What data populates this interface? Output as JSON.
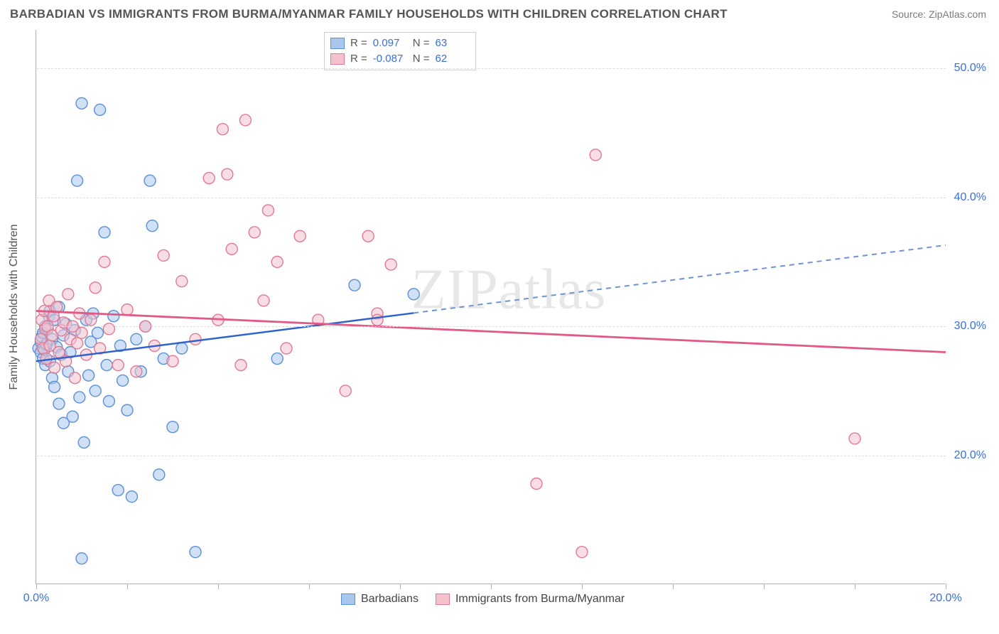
{
  "header": {
    "title": "BARBADIAN VS IMMIGRANTS FROM BURMA/MYANMAR FAMILY HOUSEHOLDS WITH CHILDREN CORRELATION CHART",
    "source": "Source: ZipAtlas.com"
  },
  "watermark": "ZIPatlas",
  "chart": {
    "type": "scatter",
    "y_axis_title": "Family Households with Children",
    "background_color": "#ffffff",
    "grid_color": "#dcdcdc",
    "axis_color": "#b0b0b0",
    "xlim": [
      0,
      20
    ],
    "ylim": [
      10,
      53
    ],
    "x_ticks": [
      0,
      2,
      4,
      6,
      8,
      10,
      12,
      14,
      16,
      18,
      20
    ],
    "x_tick_labels": {
      "0": "0.0%",
      "20": "20.0%"
    },
    "y_ticks": [
      20,
      30,
      40,
      50
    ],
    "y_tick_labels": {
      "20": "20.0%",
      "30": "30.0%",
      "40": "40.0%",
      "50": "50.0%"
    },
    "tick_label_color": "#3a6fd8",
    "tick_label_fontsize": 16,
    "marker_radius": 8,
    "marker_opacity": 0.55,
    "marker_stroke_width": 1.4,
    "series": [
      {
        "name": "Barbadians",
        "fill_color": "#a9c7ec",
        "stroke_color": "#5b8fd6",
        "R": "0.097",
        "N": "63",
        "trend": {
          "x1": 0,
          "y1": 27.3,
          "x2": 20,
          "y2": 36.3,
          "solid_until_x": 8.3,
          "color_solid": "#2f63c9",
          "color_dash": "#6e93d4",
          "width": 2.5
        },
        "points": [
          [
            0.05,
            28.3
          ],
          [
            0.1,
            28.0
          ],
          [
            0.1,
            28.8
          ],
          [
            0.12,
            29.2
          ],
          [
            0.15,
            27.5
          ],
          [
            0.15,
            29.5
          ],
          [
            0.18,
            28.2
          ],
          [
            0.2,
            30.0
          ],
          [
            0.2,
            27.0
          ],
          [
            0.22,
            28.6
          ],
          [
            0.25,
            29.8
          ],
          [
            0.28,
            30.8
          ],
          [
            0.3,
            27.3
          ],
          [
            0.3,
            31.2
          ],
          [
            0.35,
            26.0
          ],
          [
            0.35,
            29.0
          ],
          [
            0.4,
            30.5
          ],
          [
            0.4,
            25.3
          ],
          [
            0.45,
            28.4
          ],
          [
            0.5,
            31.5
          ],
          [
            0.5,
            24.0
          ],
          [
            0.55,
            27.8
          ],
          [
            0.6,
            29.3
          ],
          [
            0.6,
            22.5
          ],
          [
            0.65,
            30.2
          ],
          [
            0.7,
            26.5
          ],
          [
            0.75,
            28.0
          ],
          [
            0.8,
            23.0
          ],
          [
            0.85,
            29.7
          ],
          [
            0.9,
            41.3
          ],
          [
            0.95,
            24.5
          ],
          [
            1.0,
            47.3
          ],
          [
            1.05,
            21.0
          ],
          [
            1.1,
            30.5
          ],
          [
            1.15,
            26.2
          ],
          [
            1.2,
            28.8
          ],
          [
            1.25,
            31.0
          ],
          [
            1.3,
            25.0
          ],
          [
            1.35,
            29.5
          ],
          [
            1.4,
            46.8
          ],
          [
            1.5,
            37.3
          ],
          [
            1.55,
            27.0
          ],
          [
            1.6,
            24.2
          ],
          [
            1.7,
            30.8
          ],
          [
            1.8,
            17.3
          ],
          [
            1.85,
            28.5
          ],
          [
            1.9,
            25.8
          ],
          [
            2.0,
            23.5
          ],
          [
            2.1,
            16.8
          ],
          [
            2.2,
            29.0
          ],
          [
            2.3,
            26.5
          ],
          [
            2.4,
            30.0
          ],
          [
            2.5,
            41.3
          ],
          [
            2.55,
            37.8
          ],
          [
            2.7,
            18.5
          ],
          [
            2.8,
            27.5
          ],
          [
            3.0,
            22.2
          ],
          [
            3.2,
            28.3
          ],
          [
            3.5,
            12.5
          ],
          [
            1.0,
            12.0
          ],
          [
            5.3,
            27.5
          ],
          [
            7.0,
            33.2
          ],
          [
            8.3,
            32.5
          ]
        ]
      },
      {
        "name": "Immigrants from Burma/Myanmar",
        "fill_color": "#f4c1cd",
        "stroke_color": "#e07a94",
        "R": "-0.087",
        "N": "62",
        "trend": {
          "x1": 0,
          "y1": 31.2,
          "x2": 20,
          "y2": 28.0,
          "solid_until_x": 20,
          "color_solid": "#e05a85",
          "color_dash": "#e05a85",
          "width": 2.8
        },
        "points": [
          [
            0.1,
            29.0
          ],
          [
            0.12,
            30.5
          ],
          [
            0.15,
            28.3
          ],
          [
            0.18,
            31.2
          ],
          [
            0.2,
            29.8
          ],
          [
            0.22,
            27.5
          ],
          [
            0.25,
            30.0
          ],
          [
            0.28,
            32.0
          ],
          [
            0.3,
            28.5
          ],
          [
            0.35,
            29.3
          ],
          [
            0.38,
            30.8
          ],
          [
            0.4,
            26.8
          ],
          [
            0.45,
            31.5
          ],
          [
            0.5,
            28.0
          ],
          [
            0.55,
            29.7
          ],
          [
            0.6,
            30.3
          ],
          [
            0.65,
            27.3
          ],
          [
            0.7,
            32.5
          ],
          [
            0.75,
            29.0
          ],
          [
            0.8,
            30.0
          ],
          [
            0.85,
            26.0
          ],
          [
            0.9,
            28.7
          ],
          [
            0.95,
            31.0
          ],
          [
            1.0,
            29.5
          ],
          [
            1.1,
            27.8
          ],
          [
            1.2,
            30.5
          ],
          [
            1.3,
            33.0
          ],
          [
            1.4,
            28.3
          ],
          [
            1.5,
            35.0
          ],
          [
            1.6,
            29.8
          ],
          [
            1.8,
            27.0
          ],
          [
            2.0,
            31.3
          ],
          [
            2.2,
            26.5
          ],
          [
            2.4,
            30.0
          ],
          [
            2.6,
            28.5
          ],
          [
            2.8,
            35.5
          ],
          [
            3.0,
            27.3
          ],
          [
            3.2,
            33.5
          ],
          [
            3.5,
            29.0
          ],
          [
            3.8,
            41.5
          ],
          [
            4.0,
            30.5
          ],
          [
            4.1,
            45.3
          ],
          [
            4.3,
            36.0
          ],
          [
            4.5,
            27.0
          ],
          [
            4.6,
            46.0
          ],
          [
            4.8,
            37.3
          ],
          [
            5.0,
            32.0
          ],
          [
            5.1,
            39.0
          ],
          [
            5.3,
            35.0
          ],
          [
            5.5,
            28.3
          ],
          [
            5.8,
            37.0
          ],
          [
            6.2,
            30.5
          ],
          [
            6.8,
            25.0
          ],
          [
            7.3,
            37.0
          ],
          [
            7.5,
            31.0
          ],
          [
            7.8,
            34.8
          ],
          [
            11.0,
            17.8
          ],
          [
            12.0,
            12.5
          ],
          [
            12.3,
            43.3
          ],
          [
            18.0,
            21.3
          ],
          [
            7.5,
            30.5
          ],
          [
            4.2,
            41.8
          ]
        ]
      }
    ]
  }
}
